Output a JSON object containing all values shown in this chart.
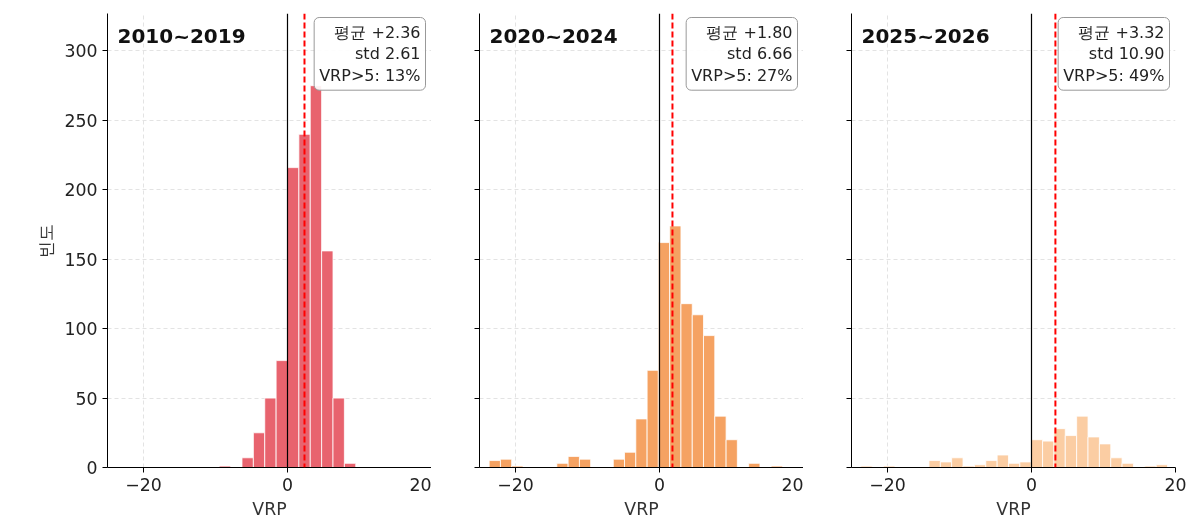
{
  "chart_data": [
    {
      "type": "histogram",
      "title": "2010~2019",
      "xlabel": "VRP",
      "ylabel": "빈도",
      "color": "#e8636e",
      "bins": [
        -9.48,
        -7.9,
        -6.32,
        -4.74,
        -3.16,
        -1.58,
        0,
        1.58,
        3.16,
        4.74,
        6.32,
        7.9,
        9.48
      ],
      "values": [
        1,
        0,
        7,
        25,
        50,
        77,
        216,
        240,
        275,
        156,
        50,
        3
      ],
      "xlim": [
        -25,
        20
      ],
      "xticks": [
        -20,
        0,
        20
      ],
      "ylim": [
        0,
        327
      ],
      "yticks": [
        0,
        50,
        100,
        150,
        200,
        250,
        300
      ],
      "grid": true,
      "ref_lines": [
        {
          "axis": "x",
          "value": 0,
          "color": "#000000",
          "line_style": "solid"
        },
        {
          "axis": "x",
          "value": 2.36,
          "color": "#ff0000",
          "line_style": "dashed"
        }
      ],
      "annotations": [
        "평균 +2.36",
        "std 2.61",
        "VRP>5: 13%"
      ]
    },
    {
      "type": "histogram",
      "title": "2020~2024",
      "xlabel": "VRP",
      "color": "#f5a262",
      "bins": [
        -23.66,
        -22.09,
        -20.53,
        -18.96,
        -17.39,
        -15.83,
        -14.26,
        -12.69,
        -11.12,
        -9.56,
        -7.99,
        -6.42,
        -4.86,
        -3.29,
        -1.72,
        -0.16,
        1.41,
        2.98,
        4.55,
        6.11,
        7.68,
        9.25,
        10.81,
        12.38,
        13.95,
        15.51,
        17.08
      ],
      "values": [
        5,
        6,
        1,
        0,
        0,
        0,
        3,
        8,
        6,
        0,
        0,
        6,
        11,
        35,
        70,
        162,
        174,
        118,
        110,
        95,
        37,
        20,
        0,
        3,
        0,
        1
      ],
      "xlim": [
        -25,
        20
      ],
      "xticks": [
        -20,
        0,
        20
      ],
      "ylim": [
        0,
        327
      ],
      "yticks": [
        0,
        50,
        100,
        150,
        200,
        250,
        300
      ],
      "grid": true,
      "tick_labels": "x",
      "ref_lines": [
        {
          "axis": "x",
          "value": 0,
          "color": "#000000",
          "line_style": "solid"
        },
        {
          "axis": "x",
          "value": 1.8,
          "color": "#ff0000",
          "line_style": "dashed"
        }
      ],
      "annotations": [
        "평균 +1.80",
        "std 6.66",
        "VRP>5: 27%"
      ]
    },
    {
      "type": "histogram",
      "title": "2025~2026",
      "xlabel": "VRP",
      "color": "#fbcda3",
      "bins": [
        -23.71,
        -22.13,
        -20.55,
        -18.98,
        -17.4,
        -15.82,
        -14.24,
        -12.66,
        -11.09,
        -9.51,
        -7.93,
        -6.35,
        -4.77,
        -3.2,
        -1.62,
        -0.04,
        1.54,
        3.12,
        4.69,
        6.27,
        7.85,
        9.43,
        11.01,
        12.58,
        14.16,
        15.74,
        17.32,
        18.89
      ],
      "values": [
        1,
        0,
        1,
        0,
        0,
        0,
        5,
        4,
        7,
        1,
        2,
        5,
        9,
        3,
        4,
        20,
        19,
        28,
        23,
        37,
        22,
        17,
        7,
        3,
        0,
        1,
        2
      ],
      "xlim": [
        -25,
        20
      ],
      "xticks": [
        -20,
        0,
        20
      ],
      "ylim": [
        0,
        327
      ],
      "yticks": [
        0,
        50,
        100,
        150,
        200,
        250,
        300
      ],
      "grid": true,
      "tick_labels": "x",
      "ref_lines": [
        {
          "axis": "x",
          "value": 0,
          "color": "#000000",
          "line_style": "solid"
        },
        {
          "axis": "x",
          "value": 3.32,
          "color": "#ff0000",
          "line_style": "dashed"
        }
      ],
      "annotations": [
        "평균 +3.32",
        "std 10.90",
        "VRP>5: 49%"
      ]
    }
  ]
}
